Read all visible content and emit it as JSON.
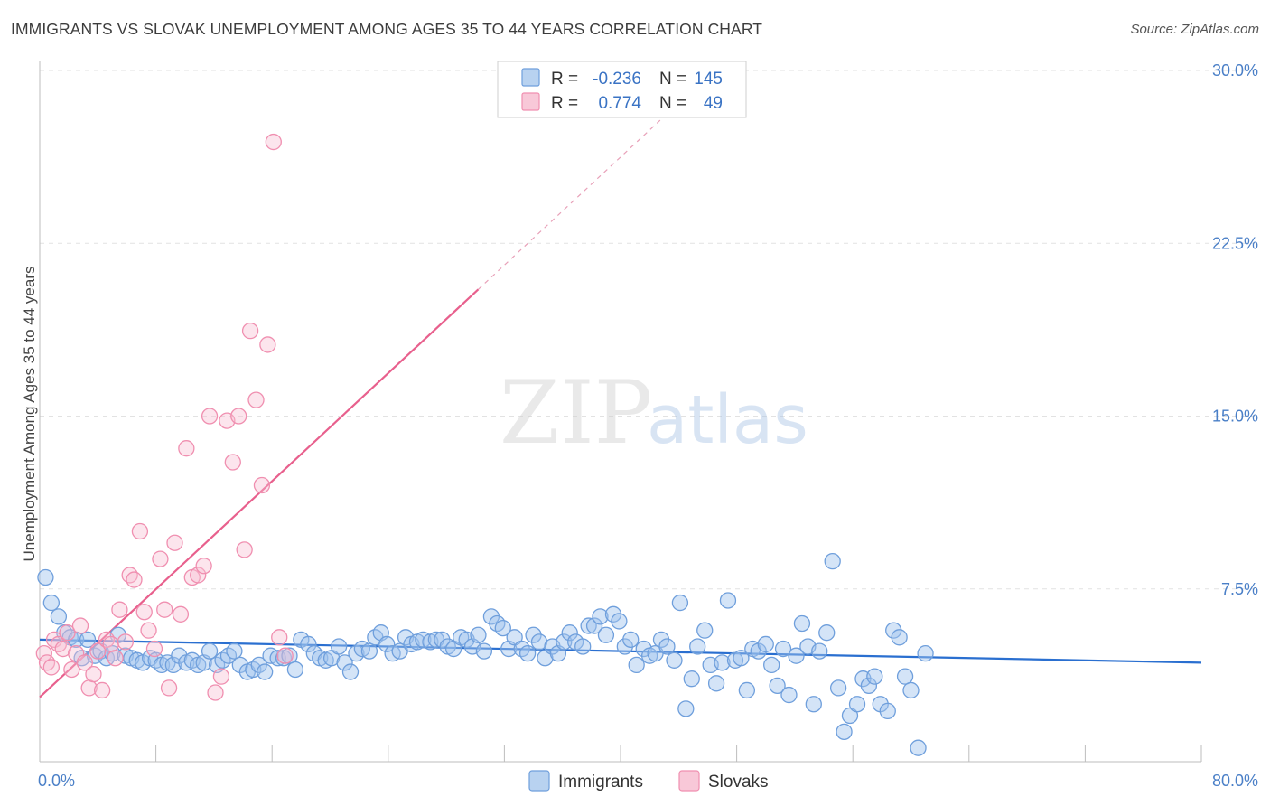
{
  "title": "IMMIGRANTS VS SLOVAK UNEMPLOYMENT AMONG AGES 35 TO 44 YEARS CORRELATION CHART",
  "source": "Source: ZipAtlas.com",
  "watermark": {
    "zip": "ZIP",
    "atlas": "atlas"
  },
  "legend_top": [
    {
      "r_label": "R =",
      "r": "-0.236",
      "n_label": "N =",
      "n": "145"
    },
    {
      "r_label": "R =",
      "r": "0.774",
      "n_label": "N =",
      "n": "49"
    }
  ],
  "chart_data": {
    "type": "scatter",
    "title": "IMMIGRANTS VS SLOVAK UNEMPLOYMENT AMONG AGES 35 TO 44 YEARS CORRELATION CHART",
    "xlabel": "",
    "ylabel": "Unemployment Among Ages 35 to 44 years",
    "xlim": [
      0,
      80
    ],
    "ylim": [
      0,
      30
    ],
    "y_ticks": [
      7.5,
      15.0,
      22.5,
      30.0
    ],
    "y_tick_labels": [
      "7.5%",
      "15.0%",
      "22.5%",
      "30.0%"
    ],
    "x_tick_labels": [
      "0.0%",
      "80.0%"
    ],
    "grid": true,
    "colors": {
      "immigrants": "#6f9fdc",
      "slovaks": "#f08fb0",
      "immigrants_line": "#2a6fd0",
      "slovaks_line": "#e8608d"
    },
    "series": [
      {
        "name": "Immigrants",
        "r": -0.236,
        "n": 145,
        "trend": {
          "x0": 0,
          "y0": 5.3,
          "x1": 80,
          "y1": 4.3,
          "solid_to": 80
        },
        "points": [
          [
            0.4,
            8.0
          ],
          [
            0.8,
            6.9
          ],
          [
            1.3,
            6.3
          ],
          [
            1.7,
            5.6
          ],
          [
            2.1,
            5.4
          ],
          [
            2.5,
            5.3
          ],
          [
            2.9,
            4.5
          ],
          [
            3.3,
            5.3
          ],
          [
            3.8,
            4.6
          ],
          [
            4.2,
            4.8
          ],
          [
            4.6,
            4.5
          ],
          [
            5.0,
            4.7
          ],
          [
            5.4,
            5.5
          ],
          [
            5.9,
            4.6
          ],
          [
            6.3,
            4.5
          ],
          [
            6.7,
            4.4
          ],
          [
            7.1,
            4.3
          ],
          [
            7.6,
            4.5
          ],
          [
            8.0,
            4.4
          ],
          [
            8.4,
            4.2
          ],
          [
            8.8,
            4.3
          ],
          [
            9.2,
            4.2
          ],
          [
            9.6,
            4.6
          ],
          [
            10.1,
            4.3
          ],
          [
            10.5,
            4.4
          ],
          [
            10.9,
            4.2
          ],
          [
            11.3,
            4.3
          ],
          [
            11.7,
            4.8
          ],
          [
            12.2,
            4.2
          ],
          [
            12.6,
            4.4
          ],
          [
            13.0,
            4.6
          ],
          [
            13.4,
            4.8
          ],
          [
            13.8,
            4.2
          ],
          [
            14.3,
            3.9
          ],
          [
            14.7,
            4.0
          ],
          [
            15.1,
            4.2
          ],
          [
            15.5,
            3.9
          ],
          [
            15.9,
            4.6
          ],
          [
            16.4,
            4.5
          ],
          [
            16.8,
            4.5
          ],
          [
            17.2,
            4.6
          ],
          [
            17.6,
            4.0
          ],
          [
            18.0,
            5.3
          ],
          [
            18.5,
            5.1
          ],
          [
            18.9,
            4.7
          ],
          [
            19.3,
            4.5
          ],
          [
            19.7,
            4.4
          ],
          [
            20.1,
            4.5
          ],
          [
            20.6,
            5.0
          ],
          [
            21.0,
            4.3
          ],
          [
            21.4,
            3.9
          ],
          [
            21.8,
            4.7
          ],
          [
            22.2,
            4.9
          ],
          [
            22.7,
            4.8
          ],
          [
            23.1,
            5.4
          ],
          [
            23.5,
            5.6
          ],
          [
            23.9,
            5.1
          ],
          [
            24.3,
            4.7
          ],
          [
            24.8,
            4.8
          ],
          [
            25.2,
            5.4
          ],
          [
            25.6,
            5.1
          ],
          [
            26.0,
            5.2
          ],
          [
            26.4,
            5.3
          ],
          [
            26.9,
            5.2
          ],
          [
            27.3,
            5.3
          ],
          [
            27.7,
            5.3
          ],
          [
            28.1,
            5.0
          ],
          [
            28.5,
            4.9
          ],
          [
            29.0,
            5.4
          ],
          [
            29.4,
            5.3
          ],
          [
            29.8,
            5.0
          ],
          [
            30.2,
            5.5
          ],
          [
            30.6,
            4.8
          ],
          [
            31.1,
            6.3
          ],
          [
            31.5,
            6.0
          ],
          [
            31.9,
            5.8
          ],
          [
            32.3,
            4.9
          ],
          [
            32.7,
            5.4
          ],
          [
            33.2,
            4.9
          ],
          [
            33.6,
            4.7
          ],
          [
            34.0,
            5.5
          ],
          [
            34.4,
            5.2
          ],
          [
            34.8,
            4.5
          ],
          [
            35.3,
            5.0
          ],
          [
            35.7,
            4.7
          ],
          [
            36.1,
            5.2
          ],
          [
            36.5,
            5.6
          ],
          [
            36.9,
            5.2
          ],
          [
            37.4,
            5.0
          ],
          [
            37.8,
            5.9
          ],
          [
            38.2,
            5.9
          ],
          [
            38.6,
            6.3
          ],
          [
            39.0,
            5.5
          ],
          [
            39.5,
            6.4
          ],
          [
            39.9,
            6.1
          ],
          [
            40.3,
            5.0
          ],
          [
            40.7,
            5.3
          ],
          [
            41.1,
            4.2
          ],
          [
            41.6,
            4.9
          ],
          [
            42.0,
            4.6
          ],
          [
            42.4,
            4.7
          ],
          [
            42.8,
            5.3
          ],
          [
            43.2,
            5.0
          ],
          [
            43.7,
            4.4
          ],
          [
            44.1,
            6.9
          ],
          [
            44.5,
            2.3
          ],
          [
            44.9,
            3.6
          ],
          [
            45.3,
            5.0
          ],
          [
            45.8,
            5.7
          ],
          [
            46.2,
            4.2
          ],
          [
            46.6,
            3.4
          ],
          [
            47.0,
            4.3
          ],
          [
            47.4,
            7.0
          ],
          [
            47.9,
            4.4
          ],
          [
            48.3,
            4.5
          ],
          [
            48.7,
            3.1
          ],
          [
            49.1,
            4.9
          ],
          [
            49.5,
            4.8
          ],
          [
            50.0,
            5.1
          ],
          [
            50.4,
            4.2
          ],
          [
            50.8,
            3.3
          ],
          [
            51.2,
            4.9
          ],
          [
            51.6,
            2.9
          ],
          [
            52.1,
            4.6
          ],
          [
            52.5,
            6.0
          ],
          [
            52.9,
            5.0
          ],
          [
            53.3,
            2.5
          ],
          [
            53.7,
            4.8
          ],
          [
            54.2,
            5.6
          ],
          [
            54.6,
            8.7
          ],
          [
            55.0,
            3.2
          ],
          [
            55.4,
            1.3
          ],
          [
            55.8,
            2.0
          ],
          [
            56.3,
            2.5
          ],
          [
            56.7,
            3.6
          ],
          [
            57.1,
            3.3
          ],
          [
            57.5,
            3.7
          ],
          [
            57.9,
            2.5
          ],
          [
            58.4,
            2.2
          ],
          [
            58.8,
            5.7
          ],
          [
            59.2,
            5.4
          ],
          [
            59.6,
            3.7
          ],
          [
            60.0,
            3.1
          ],
          [
            60.5,
            0.6
          ],
          [
            61.0,
            4.7
          ]
        ]
      },
      {
        "name": "Slovaks",
        "r": 0.774,
        "n": 49,
        "trend": {
          "x0": 0,
          "y0": 2.8,
          "x1": 43,
          "y1": 28.0,
          "solid_to": 30.2
        },
        "points": [
          [
            0.3,
            4.7
          ],
          [
            0.5,
            4.3
          ],
          [
            0.8,
            4.1
          ],
          [
            1.0,
            5.3
          ],
          [
            1.3,
            5.1
          ],
          [
            1.6,
            4.9
          ],
          [
            1.9,
            5.6
          ],
          [
            2.2,
            4.0
          ],
          [
            2.5,
            4.7
          ],
          [
            2.8,
            5.9
          ],
          [
            3.1,
            4.3
          ],
          [
            3.4,
            3.2
          ],
          [
            3.7,
            3.8
          ],
          [
            4.0,
            4.8
          ],
          [
            4.3,
            3.1
          ],
          [
            4.6,
            5.3
          ],
          [
            4.9,
            5.1
          ],
          [
            5.2,
            4.5
          ],
          [
            5.5,
            6.6
          ],
          [
            5.9,
            5.2
          ],
          [
            6.2,
            8.1
          ],
          [
            6.5,
            7.9
          ],
          [
            6.9,
            10.0
          ],
          [
            7.2,
            6.5
          ],
          [
            7.5,
            5.7
          ],
          [
            7.9,
            4.9
          ],
          [
            8.3,
            8.8
          ],
          [
            8.6,
            6.6
          ],
          [
            8.9,
            3.2
          ],
          [
            9.3,
            9.5
          ],
          [
            9.7,
            6.4
          ],
          [
            10.1,
            13.6
          ],
          [
            10.5,
            8.0
          ],
          [
            10.9,
            8.1
          ],
          [
            11.3,
            8.5
          ],
          [
            11.7,
            15.0
          ],
          [
            12.1,
            3.0
          ],
          [
            12.5,
            3.7
          ],
          [
            12.9,
            14.8
          ],
          [
            13.3,
            13.0
          ],
          [
            13.7,
            15.0
          ],
          [
            14.1,
            9.2
          ],
          [
            14.5,
            18.7
          ],
          [
            14.9,
            15.7
          ],
          [
            15.3,
            12.0
          ],
          [
            15.7,
            18.1
          ],
          [
            16.1,
            26.9
          ],
          [
            16.5,
            5.4
          ],
          [
            16.9,
            4.6
          ]
        ]
      }
    ]
  },
  "legend_bottom": [
    "Immigrants",
    "Slovaks"
  ]
}
